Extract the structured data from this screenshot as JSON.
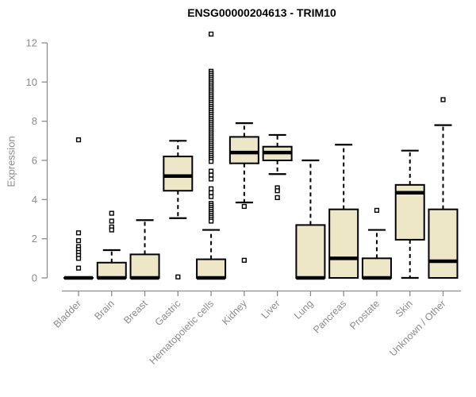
{
  "chart_data": {
    "type": "boxplot",
    "title": "ENSG00000204613 - TRIM10",
    "ylabel": "Expression",
    "xlabel": "",
    "yticks": [
      0,
      2,
      4,
      6,
      8,
      10,
      12
    ],
    "ylim": [
      0,
      12.6
    ],
    "grid": false,
    "legend": "none",
    "categories": [
      "Bladder",
      "Brain",
      "Breast",
      "Gastric",
      "Hematopoietic cells",
      "Kidney",
      "Liver",
      "Lung",
      "Pancreas",
      "Prostate",
      "Skin",
      "Unknown / Other"
    ],
    "boxes": [
      {
        "category": "Bladder",
        "q1": 0,
        "median": 0,
        "q3": 0,
        "whisker_low": 0,
        "whisker_high": 0,
        "outliers": [
          7.05,
          2.3,
          1.9,
          1.6,
          1.45,
          1.3,
          1.15,
          1.0,
          0.5
        ]
      },
      {
        "category": "Brain",
        "q1": 0,
        "median": 0,
        "q3": 0.78,
        "whisker_low": 0,
        "whisker_high": 1.42,
        "outliers": [
          3.3,
          2.9,
          2.6,
          2.45
        ]
      },
      {
        "category": "Breast",
        "q1": 0,
        "median": 0,
        "q3": 1.2,
        "whisker_low": 0,
        "whisker_high": 2.95,
        "outliers": []
      },
      {
        "category": "Gastric",
        "q1": 4.45,
        "median": 5.2,
        "q3": 6.2,
        "whisker_low": 3.05,
        "whisker_high": 7.0,
        "outliers": [
          0.05
        ]
      },
      {
        "category": "Hematopoietic cells",
        "q1": 0,
        "median": 0,
        "q3": 0.95,
        "whisker_low": 0,
        "whisker_high": 2.45,
        "outliers": [
          12.45,
          10.55,
          10.45,
          10.35,
          10.25,
          10.15,
          10.05,
          9.95,
          9.85,
          9.75,
          9.65,
          9.55,
          9.45,
          9.35,
          9.25,
          9.15,
          9.05,
          8.95,
          8.85,
          8.75,
          8.65,
          8.55,
          8.45,
          8.35,
          8.25,
          8.15,
          8.05,
          7.95,
          7.85,
          7.75,
          7.65,
          7.55,
          7.45,
          7.35,
          7.25,
          7.15,
          7.05,
          6.95,
          6.85,
          6.75,
          6.65,
          6.55,
          6.45,
          6.35,
          6.25,
          6.15,
          6.05,
          5.95,
          5.45,
          5.25,
          5.05,
          4.55,
          4.35,
          4.15,
          3.8,
          3.7,
          3.6,
          3.5,
          3.4,
          3.3,
          3.2,
          3.1,
          3.0,
          2.9
        ]
      },
      {
        "category": "Kidney",
        "q1": 5.85,
        "median": 6.4,
        "q3": 7.2,
        "whisker_low": 3.85,
        "whisker_high": 7.9,
        "outliers": [
          3.65,
          0.9
        ]
      },
      {
        "category": "Liver",
        "q1": 6.0,
        "median": 6.4,
        "q3": 6.7,
        "whisker_low": 5.3,
        "whisker_high": 7.3,
        "outliers": [
          4.6,
          4.45,
          4.1
        ]
      },
      {
        "category": "Lung",
        "q1": 0,
        "median": 0,
        "q3": 2.7,
        "whisker_low": 0,
        "whisker_high": 6.0,
        "outliers": []
      },
      {
        "category": "Pancreas",
        "q1": 0,
        "median": 1.0,
        "q3": 3.5,
        "whisker_low": 0,
        "whisker_high": 6.8,
        "outliers": []
      },
      {
        "category": "Prostate",
        "q1": 0,
        "median": 0,
        "q3": 1.0,
        "whisker_low": 0,
        "whisker_high": 2.45,
        "outliers": [
          3.45
        ]
      },
      {
        "category": "Skin",
        "q1": 1.95,
        "median": 4.35,
        "q3": 4.75,
        "whisker_low": 0,
        "whisker_high": 6.5,
        "outliers": []
      },
      {
        "category": "Unknown / Other",
        "q1": 0,
        "median": 0.85,
        "q3": 3.5,
        "whisker_low": 0,
        "whisker_high": 7.8,
        "outliers": [
          9.1
        ]
      }
    ],
    "colors": {
      "box_fill": "#EDE7C7",
      "box_stroke": "#000000",
      "median": "#000000",
      "whisker": "#000000",
      "axis": "#8C8C8C",
      "tick_label": "#8C8C8C",
      "title": "#000000",
      "background": "#FFFFFF"
    }
  }
}
